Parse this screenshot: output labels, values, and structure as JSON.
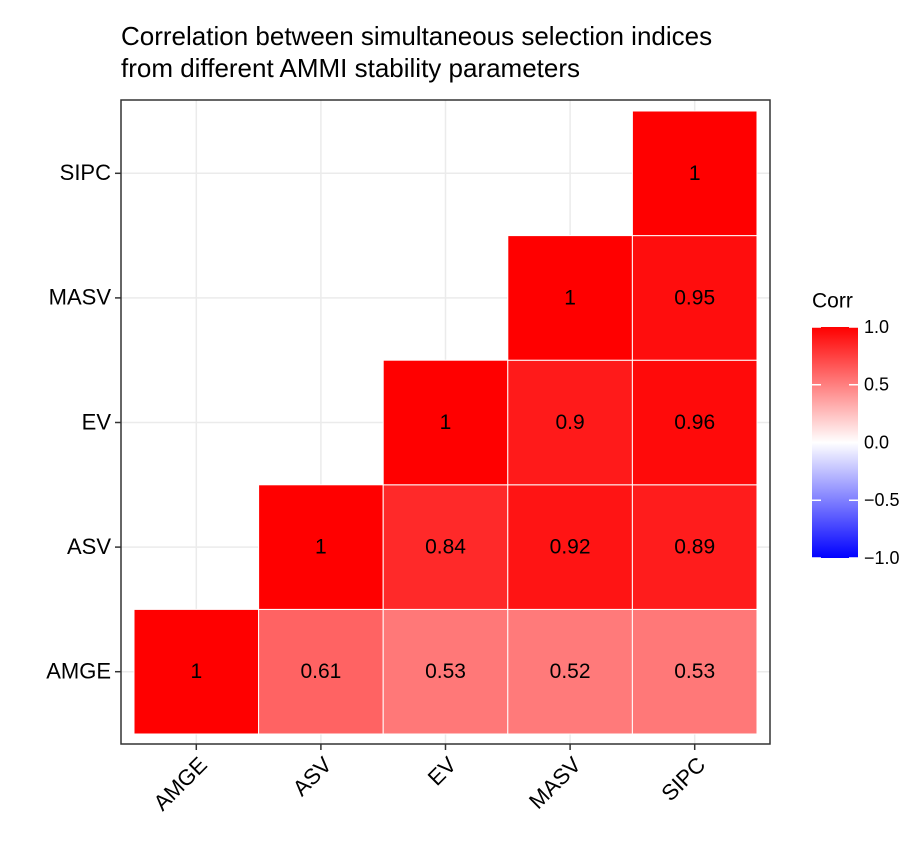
{
  "chart_data": {
    "type": "heatmap",
    "title": [
      "Correlation between simultaneous selection indices",
      "from different AMMI stability parameters"
    ],
    "x": [
      "AMGE",
      "ASV",
      "EV",
      "MASV",
      "SIPC"
    ],
    "y": [
      "AMGE",
      "ASV",
      "EV",
      "MASV",
      "SIPC"
    ],
    "values": [
      [
        1,
        0.61,
        0.53,
        0.52,
        0.53
      ],
      [
        null,
        1,
        0.84,
        0.92,
        0.89
      ],
      [
        null,
        null,
        1,
        0.9,
        0.96
      ],
      [
        null,
        null,
        null,
        1,
        0.95
      ],
      [
        null,
        null,
        null,
        null,
        1
      ]
    ],
    "colors": {
      "low": "#0000ff",
      "mid": "#ffffff",
      "high": "#ff0000"
    },
    "legend_title": "Corr",
    "clim": [
      -1,
      1
    ],
    "cticks": [
      {
        "value": 1,
        "label": "1.0"
      },
      {
        "value": 0.5,
        "label": "0.5"
      },
      {
        "value": 0,
        "label": "0.0"
      },
      {
        "value": -0.5,
        "label": "−0.5"
      },
      {
        "value": -1,
        "label": "−1.0"
      }
    ],
    "grid": true
  }
}
